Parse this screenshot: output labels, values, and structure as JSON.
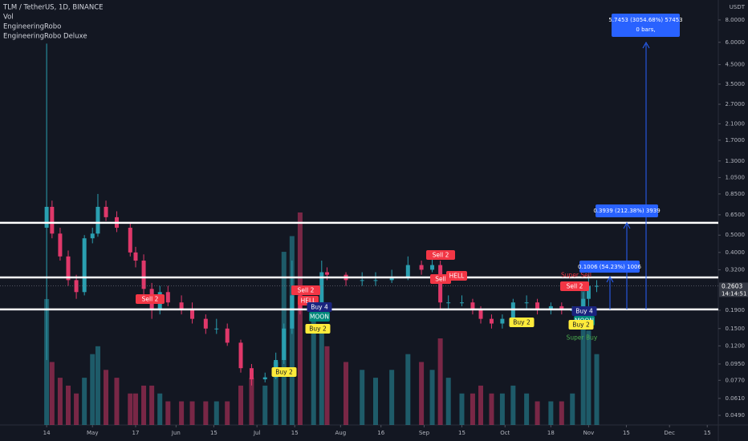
{
  "chart_data": {
    "type": "candlestick",
    "title": "TLM / TetherUS, 1D, BINANCE",
    "indicators": [
      "Vol",
      "EngineeringRobo",
      "EngineeringRobo Deluxe"
    ],
    "y_unit": "USDT",
    "log_scale": true,
    "grid": false,
    "up_color": "#2a9fb0",
    "down_color": "#e0386a",
    "ylim": [
      0.0433,
      10.35
    ],
    "yticks": [
      {
        "value": 8,
        "label": "8.0000"
      },
      {
        "value": 6,
        "label": "6.0000"
      },
      {
        "value": 4.5,
        "label": "4.5000"
      },
      {
        "value": 3.5,
        "label": "3.5000"
      },
      {
        "value": 2.7,
        "label": "2.7000"
      },
      {
        "value": 2.1,
        "label": "2.1000"
      },
      {
        "value": 1.7,
        "label": "1.7000"
      },
      {
        "value": 1.3,
        "label": "1.3000"
      },
      {
        "value": 1.05,
        "label": "1.0500"
      },
      {
        "value": 0.85,
        "label": "0.8500"
      },
      {
        "value": 0.65,
        "label": "0.6500"
      },
      {
        "value": 0.5,
        "label": "0.5000"
      },
      {
        "value": 0.4,
        "label": "0.4000"
      },
      {
        "value": 0.32,
        "label": "0.3200"
      },
      {
        "value": 0.19,
        "label": "0.1900"
      },
      {
        "value": 0.15,
        "label": "0.1500"
      },
      {
        "value": 0.12,
        "label": "0.1200"
      },
      {
        "value": 0.095,
        "label": "0.0950"
      },
      {
        "value": 0.077,
        "label": "0.0770"
      },
      {
        "value": 0.061,
        "label": "0.0610"
      },
      {
        "value": 0.049,
        "label": "0.0490"
      }
    ],
    "xlim": [
      -17.3,
      249.1
    ],
    "xticks": [
      {
        "value": 0,
        "label": "14"
      },
      {
        "value": 17,
        "label": "May"
      },
      {
        "value": 33,
        "label": "17"
      },
      {
        "value": 48,
        "label": "Jun"
      },
      {
        "value": 62,
        "label": "15"
      },
      {
        "value": 78,
        "label": "Jul"
      },
      {
        "value": 92,
        "label": "15"
      },
      {
        "value": 109,
        "label": "Aug"
      },
      {
        "value": 124,
        "label": "16"
      },
      {
        "value": 140,
        "label": "Sep"
      },
      {
        "value": 154,
        "label": "15"
      },
      {
        "value": 170,
        "label": "Oct"
      },
      {
        "value": 187,
        "label": "18"
      },
      {
        "value": 201,
        "label": "Nov"
      },
      {
        "value": 215,
        "label": "15"
      },
      {
        "value": 231,
        "label": "Dec"
      },
      {
        "value": 245,
        "label": "15"
      }
    ],
    "x": [
      0,
      2,
      5,
      8,
      11,
      14,
      17,
      19,
      22,
      26,
      31,
      33,
      36,
      39,
      42,
      45,
      50,
      54,
      59,
      63,
      67,
      72,
      76,
      81,
      85,
      88,
      91,
      94,
      99,
      102,
      104,
      111,
      117,
      122,
      128,
      134,
      139,
      143,
      146,
      149,
      154,
      158,
      161,
      165,
      169,
      173,
      178,
      182,
      187,
      191,
      195,
      199,
      201,
      204
    ],
    "open": [
      0.55,
      0.72,
      0.51,
      0.38,
      0.28,
      0.24,
      0.48,
      0.51,
      0.72,
      0.63,
      0.55,
      0.4,
      0.36,
      0.25,
      0.19,
      0.24,
      0.21,
      0.19,
      0.17,
      0.15,
      0.15,
      0.125,
      0.09,
      0.078,
      0.08,
      0.1,
      0.15,
      0.23,
      0.19,
      0.19,
      0.31,
      0.3,
      0.28,
      0.28,
      0.28,
      0.29,
      0.34,
      0.32,
      0.34,
      0.21,
      0.21,
      0.21,
      0.19,
      0.17,
      0.16,
      0.17,
      0.21,
      0.21,
      0.19,
      0.2,
      0.19,
      0.19,
      0.22,
      0.26
    ],
    "high": [
      5.9,
      0.78,
      0.55,
      0.41,
      0.3,
      0.5,
      0.55,
      0.85,
      0.78,
      0.68,
      0.58,
      0.43,
      0.39,
      0.27,
      0.26,
      0.26,
      0.23,
      0.21,
      0.18,
      0.17,
      0.16,
      0.13,
      0.095,
      0.085,
      0.11,
      0.16,
      0.36,
      0.25,
      0.21,
      0.36,
      0.33,
      0.31,
      0.31,
      0.31,
      0.32,
      0.38,
      0.36,
      0.4,
      0.36,
      0.23,
      0.23,
      0.22,
      0.2,
      0.18,
      0.18,
      0.22,
      0.23,
      0.22,
      0.21,
      0.21,
      0.2,
      0.24,
      0.3,
      0.28
    ],
    "low": [
      0.1,
      0.48,
      0.36,
      0.26,
      0.22,
      0.23,
      0.45,
      0.49,
      0.6,
      0.52,
      0.38,
      0.33,
      0.23,
      0.17,
      0.18,
      0.2,
      0.18,
      0.16,
      0.14,
      0.14,
      0.12,
      0.085,
      0.072,
      0.075,
      0.078,
      0.095,
      0.14,
      0.18,
      0.17,
      0.18,
      0.28,
      0.26,
      0.26,
      0.26,
      0.27,
      0.28,
      0.3,
      0.31,
      0.19,
      0.19,
      0.2,
      0.18,
      0.16,
      0.15,
      0.15,
      0.16,
      0.19,
      0.18,
      0.18,
      0.18,
      0.18,
      0.18,
      0.2,
      0.24
    ],
    "close": [
      0.72,
      0.51,
      0.38,
      0.28,
      0.24,
      0.48,
      0.51,
      0.72,
      0.63,
      0.55,
      0.4,
      0.36,
      0.25,
      0.19,
      0.24,
      0.21,
      0.19,
      0.17,
      0.15,
      0.15,
      0.125,
      0.09,
      0.078,
      0.08,
      0.1,
      0.15,
      0.23,
      0.19,
      0.19,
      0.31,
      0.3,
      0.28,
      0.28,
      0.28,
      0.29,
      0.34,
      0.32,
      0.34,
      0.21,
      0.21,
      0.21,
      0.19,
      0.17,
      0.16,
      0.17,
      0.21,
      0.21,
      0.19,
      0.2,
      0.19,
      0.19,
      0.22,
      0.26,
      0.26
    ],
    "volume": [
      80,
      40,
      30,
      25,
      20,
      30,
      45,
      50,
      35,
      30,
      20,
      20,
      25,
      25,
      20,
      15,
      15,
      15,
      15,
      15,
      15,
      25,
      30,
      25,
      40,
      110,
      120,
      135,
      70,
      60,
      50,
      40,
      35,
      30,
      35,
      45,
      40,
      35,
      55,
      30,
      20,
      20,
      25,
      20,
      20,
      25,
      20,
      15,
      15,
      15,
      20,
      90,
      60,
      45
    ],
    "vlim": [
      0,
      270
    ],
    "hlines": [
      0.586,
      0.29,
      0.192
    ],
    "last_price": {
      "value": 0.2603,
      "label": "0.2603"
    },
    "countdown": "14:14:51",
    "annotations": [
      {
        "text": "Sell 2",
        "style": "red"
      },
      {
        "text": "Sell 2",
        "style": "red"
      },
      {
        "text": "HELL",
        "style": "red"
      },
      {
        "text": "Buy 4",
        "style": "navy"
      },
      {
        "text": "MOON",
        "style": "teal"
      },
      {
        "text": "Buy 2",
        "style": "yellow"
      },
      {
        "text": "Buy 2",
        "style": "yellow"
      },
      {
        "text": "Sell 2",
        "style": "red"
      },
      {
        "text": "Sell",
        "style": "red"
      },
      {
        "text": "HELL",
        "style": "red"
      },
      {
        "text": "Buy 2",
        "style": "yellow"
      },
      {
        "text": "Super Sell",
        "style": "red-text"
      },
      {
        "text": "Sell 2",
        "style": "red"
      },
      {
        "text": "Buy 4",
        "style": "navy"
      },
      {
        "text": "MOON",
        "style": "teal"
      },
      {
        "text": "Buy 2",
        "style": "yellow"
      },
      {
        "text": "Super Buy",
        "style": "green-text"
      }
    ],
    "measures": [
      {
        "lines": [
          "5.7453 (3054.68%) 57453",
          "0 bars,"
        ]
      },
      {
        "lines": [
          "0.3939 (212.38%) 3939"
        ]
      },
      {
        "lines": [
          "0.1006 (54.23%) 1006"
        ]
      }
    ]
  }
}
